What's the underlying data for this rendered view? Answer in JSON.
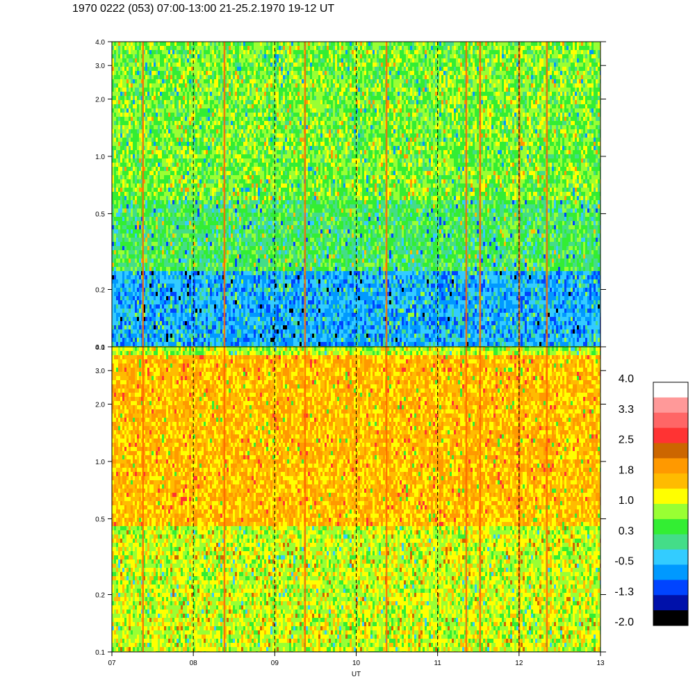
{
  "title": "1970 0222 (053) 07:00-13:00 21-25.2.1970  19-12 UT",
  "chart_data": {
    "type": "heatmap",
    "xlabel": "UT",
    "x_tick_labels": [
      "07",
      "08",
      "09",
      "10",
      "11",
      "12",
      "13"
    ],
    "x_ticks": [
      7,
      8,
      9,
      10,
      11,
      12,
      13
    ],
    "xlim": [
      7,
      13
    ],
    "x_dashed_lines": [
      8,
      9,
      10,
      11,
      12
    ],
    "y_scale": "log",
    "panels": [
      {
        "name": "upper",
        "ylim": [
          0.1,
          4.0
        ],
        "y_ticks": [
          0.1,
          0.2,
          0.5,
          1.0,
          2.0,
          3.0,
          4.0
        ],
        "y_tick_labels": [
          "0.1",
          "0.2",
          "0.5",
          "1.0",
          "2.0",
          "3.0",
          "4.0"
        ],
        "dominant_levels": [
          {
            "y_from": 0.1,
            "y_to": 0.25,
            "level": -0.5
          },
          {
            "y_from": 0.25,
            "y_to": 0.6,
            "level": 0.3
          },
          {
            "y_from": 0.6,
            "y_to": 4.0,
            "level": 0.65
          }
        ]
      },
      {
        "name": "lower",
        "ylim": [
          0.1,
          4.0
        ],
        "y_ticks": [
          0.1,
          0.2,
          0.5,
          1.0,
          2.0,
          3.0,
          4.0
        ],
        "y_tick_labels": [
          "0.1",
          "0.2",
          "0.5",
          "1.0",
          "2.0",
          "3.0",
          "4.0"
        ],
        "dominant_levels": [
          {
            "y_from": 0.1,
            "y_to": 0.45,
            "level": 1.0
          },
          {
            "y_from": 0.45,
            "y_to": 3.6,
            "level": 1.6
          },
          {
            "y_from": 3.6,
            "y_to": 4.0,
            "level": 0.9
          }
        ]
      }
    ],
    "vertical_streaks_ut": [
      7.38,
      8.38,
      9.37,
      10.37,
      11.35,
      11.52,
      12.0,
      12.34
    ],
    "colorbar": {
      "labels": [
        "4.0",
        "3.3",
        "2.5",
        "1.8",
        "1.0",
        "0.3",
        "-0.5",
        "-1.3",
        "-2.0"
      ],
      "colors": [
        "#ffffff",
        "#ff9999",
        "#ff6666",
        "#ff3333",
        "#cc6600",
        "#ff9900",
        "#ffbb00",
        "#ffff00",
        "#99ff33",
        "#33ee33",
        "#44dd88",
        "#33ccff",
        "#0099ff",
        "#0044ff",
        "#0011aa",
        "#000000"
      ]
    }
  }
}
